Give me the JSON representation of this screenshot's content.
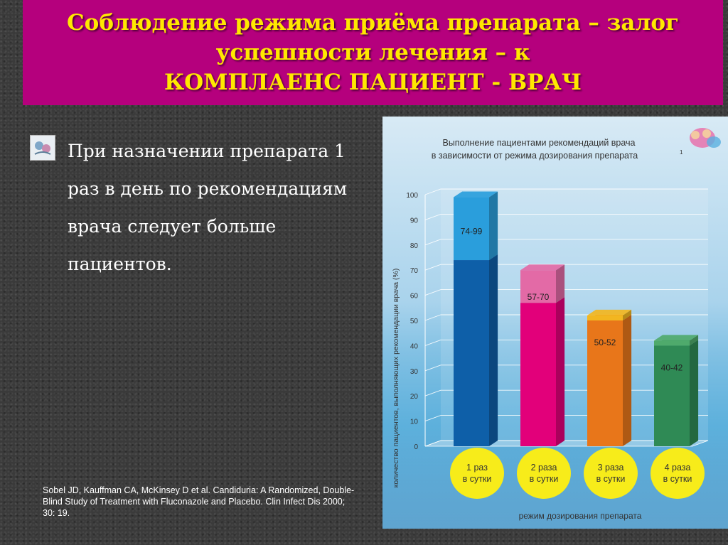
{
  "slide": {
    "title_lines": [
      "Соблюдение режима приёма препарата – залог",
      "успешности лечения – к",
      "КОМПЛАЕНС ПАЦИЕНТ - ВРАЧ"
    ],
    "bullet_text": "При назначении препарата  1 раз в день по рекомендациям врача следует больше пациентов.",
    "reference": "Sobel JD, Kauffman CA, McKinsey D et al. Candiduria: A Randomized, Double-Blind Study of Treatment with Fluconazole and Placebo. Clin Infect Dis 2000; 30: 19.",
    "colors": {
      "title_bar": "#b5007d",
      "title_text": "#ffe800",
      "background": "#3a3a3a"
    }
  },
  "chart_data": {
    "type": "bar",
    "title_lines": [
      "Выполнение пациентами рекомендаций врача",
      "в зависимости от режима дозирования препарата"
    ],
    "title_superscript": "1",
    "ylabel": "количество пациентов, выполняющих рекомендации врача (%)",
    "xlabel": "режим дозирования препарата",
    "ylim": [
      0,
      100
    ],
    "yticks": [
      0,
      10,
      20,
      30,
      40,
      50,
      60,
      70,
      80,
      90,
      100
    ],
    "categories": [
      "1 раз в сутки",
      "2 раза в сутки",
      "3 раза в сутки",
      "4 раза в сутки"
    ],
    "category_lines": [
      [
        "1 раз",
        "в сутки"
      ],
      [
        "2 раза",
        "в сутки"
      ],
      [
        "3 раза",
        "в сутки"
      ],
      [
        "4 раза",
        "в сутки"
      ]
    ],
    "ranges": [
      [
        74,
        99
      ],
      [
        57,
        70
      ],
      [
        50,
        52
      ],
      [
        40,
        42
      ]
    ],
    "range_labels": [
      "74-99",
      "57-70",
      "50-52",
      "40-42"
    ],
    "colors": {
      "low": [
        "#0e5fa8",
        "#e2007a",
        "#e8761a",
        "#2f8a55"
      ],
      "high": [
        "#2a9edc",
        "#e36aa6",
        "#f2b620",
        "#4faa6c"
      ],
      "category_circle": "#f7ec1a",
      "grid": "#ffffff"
    },
    "grid": true
  }
}
